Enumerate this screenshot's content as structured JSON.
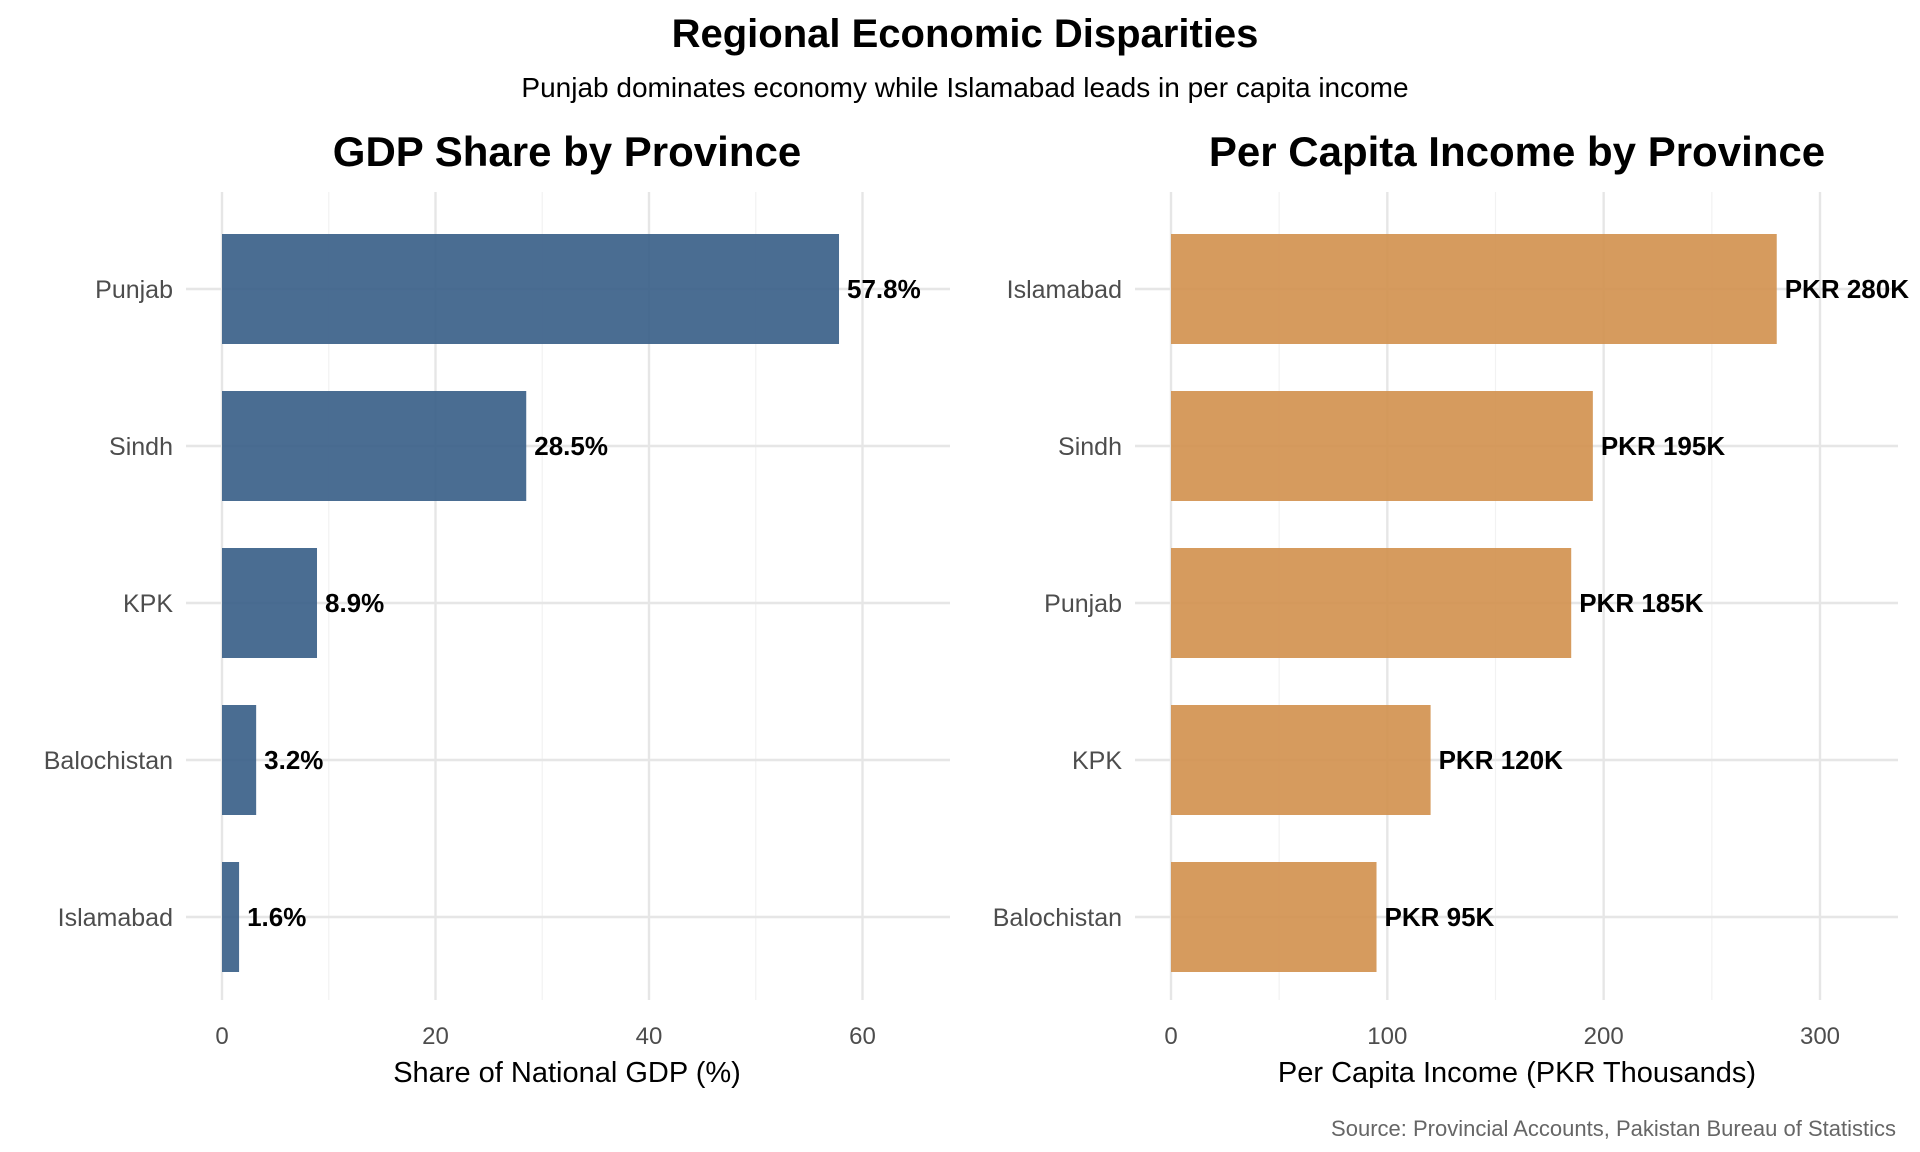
{
  "header": {
    "title": "Regional Economic Disparities",
    "subtitle": "Punjab dominates economy while Islamabad leads in per capita income"
  },
  "caption": "Source: Provincial Accounts, Pakistan Bureau of Statistics",
  "chart_data": [
    {
      "type": "bar",
      "orientation": "horizontal",
      "title": "GDP Share by Province",
      "xlabel": "Share of National GDP (%)",
      "ylabel": "",
      "categories": [
        "Punjab",
        "Sindh",
        "KPK",
        "Balochistan",
        "Islamabad"
      ],
      "values": [
        57.8,
        28.5,
        8.9,
        3.2,
        1.6
      ],
      "labels": [
        "57.8%",
        "28.5%",
        "8.9%",
        "3.2%",
        "1.6%"
      ],
      "xlim": [
        0,
        68
      ],
      "xticks": [
        0,
        20,
        40,
        60
      ],
      "bar_color": "#3b6189",
      "grid": true
    },
    {
      "type": "bar",
      "orientation": "horizontal",
      "title": "Per Capita Income by Province",
      "xlabel": "Per Capita Income (PKR Thousands)",
      "ylabel": "",
      "categories": [
        "Islamabad",
        "Sindh",
        "Punjab",
        "KPK",
        "Balochistan"
      ],
      "values": [
        280,
        195,
        185,
        120,
        95
      ],
      "labels": [
        "PKR 280K",
        "PKR 195K",
        "PKR 185K",
        "PKR 120K",
        "PKR 95K"
      ],
      "xlim": [
        0,
        336
      ],
      "xticks": [
        0,
        100,
        200,
        300
      ],
      "bar_color": "#d29250",
      "grid": true
    }
  ]
}
